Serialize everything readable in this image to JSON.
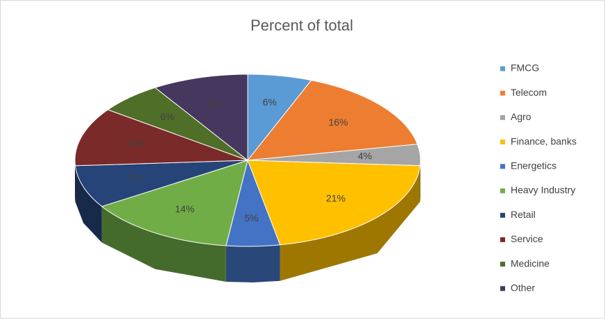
{
  "chart_data": {
    "type": "pie3d",
    "title": "Percent of total",
    "categories": [
      "FMCG",
      "Telecom",
      "Agro",
      "Finance, banks",
      "Energetics",
      "Heavy Industry",
      "Retail",
      "Service",
      "Medicine",
      "Other"
    ],
    "values": [
      6,
      16,
      4,
      21,
      5,
      14,
      8,
      11,
      6,
      9
    ],
    "value_labels": [
      "6%",
      "16%",
      "4%",
      "21%",
      "5%",
      "14%",
      "8%",
      "11%",
      "6%",
      "9%"
    ],
    "colors": [
      "#5b9bd5",
      "#ed7d31",
      "#a5a5a5",
      "#ffc000",
      "#4472c4",
      "#70ad47",
      "#264478",
      "#7b2a2a",
      "#4f6e28",
      "#46375e"
    ],
    "legend": "right"
  }
}
